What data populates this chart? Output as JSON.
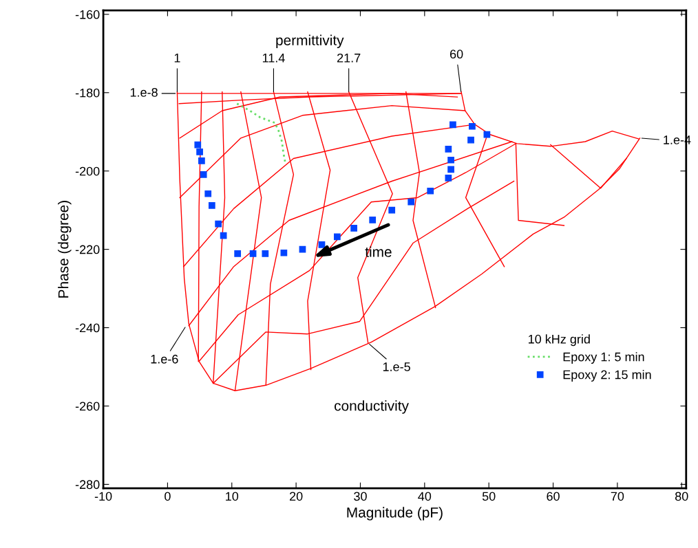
{
  "chart_data": {
    "type": "line",
    "xlabel": "Magnitude (pF)",
    "ylabel": "Phase (degree)",
    "legend_title": "10 kHz grid",
    "legend": "bottom right",
    "grid": false,
    "xlim": [
      -10,
      80.7
    ],
    "ylim": [
      -281,
      -159
    ],
    "xticks": [
      -10,
      0,
      10,
      20,
      30,
      40,
      50,
      60,
      70,
      80
    ],
    "yticks": [
      -280,
      -260,
      -240,
      -220,
      -200,
      -180,
      -160
    ],
    "series": [
      {
        "color": "#ff0000",
        "x": [
          1.5,
          45.7
        ],
        "values": [
          -180.2,
          -180.2
        ]
      },
      {
        "type": "line",
        "color": "#ff0000",
        "x": [
          1.5,
          1.9,
          2.6,
          3.3,
          4.9,
          7.1,
          10.5,
          15.3,
          22.3,
          31.7,
          41.6,
          48.9,
          56.9,
          61.7,
          67.1,
          70.3,
          73.5
        ],
        "values": [
          -179.8,
          -202.1,
          -227.5,
          -239.0,
          -248.6,
          -254.2,
          -256.1,
          -254.7,
          -250.4,
          -243.7,
          -234.6,
          -226.3,
          -216.1,
          -211.8,
          -204.7,
          -199.5,
          -191.6
        ]
      },
      {
        "type": "line",
        "color": "#ff0000",
        "x": [
          45.7,
          46.3,
          47.8,
          50.2,
          54.4,
          59.6,
          65.0,
          69.2,
          73.3
        ],
        "values": [
          -179.8,
          -184.6,
          -188.1,
          -190.7,
          -193.0,
          -193.7,
          -192.5,
          -189.8,
          -191.8
        ]
      },
      {
        "type": "line",
        "color": "#ff0000",
        "x": [
          5.3,
          4.9,
          4.8
        ],
        "values": [
          -179.8,
          -209.1,
          -248.6
        ]
      },
      {
        "type": "line",
        "color": "#ff0000",
        "x": [
          8.5,
          8.9,
          7.1
        ],
        "values": [
          -179.8,
          -206.8,
          -254.2
        ]
      },
      {
        "type": "line",
        "color": "#ff0000",
        "x": [
          11.4,
          14.6,
          10.5
        ],
        "values": [
          -179.8,
          -206.8,
          -256.1
        ]
      },
      {
        "type": "line",
        "color": "#ff0000",
        "x": [
          16.5,
          19.6,
          16.0,
          15.3
        ],
        "values": [
          -179.8,
          -200.9,
          -228.9,
          -254.7
        ]
      },
      {
        "type": "line",
        "color": "#ff0000",
        "x": [
          21.8,
          25.3,
          21.8,
          22.3
        ],
        "values": [
          -179.8,
          -199.8,
          -233.2,
          -250.7
        ]
      },
      {
        "type": "line",
        "color": "#ff0000",
        "x": [
          28.2,
          35.0,
          29.6,
          31.2
        ],
        "values": [
          -179.8,
          -205.8,
          -227.2,
          -243.9
        ]
      },
      {
        "type": "line",
        "color": "#ff0000",
        "x": [
          37.1,
          39.2,
          38.2,
          41.7
        ],
        "values": [
          -179.8,
          -200.4,
          -212.6,
          -234.9
        ]
      },
      {
        "type": "line",
        "color": "#ff0000",
        "x": [
          49.6,
          46.4,
          52.4
        ],
        "values": [
          -191.6,
          -206.8,
          -224.4
        ]
      },
      {
        "type": "line",
        "color": "#ff0000",
        "x": [
          54.2,
          54.6,
          61.7
        ],
        "values": [
          -193.0,
          -212.6,
          -213.9
        ]
      },
      {
        "type": "line",
        "color": "#ff0000",
        "x": [
          59.6,
          67.4,
          71.4
        ],
        "values": [
          -193.3,
          -204.4,
          -196.8
        ]
      },
      {
        "type": "line",
        "color": "#ff0000",
        "x": [
          1.8,
          11.4,
          22.1,
          38.2,
          45.7
        ],
        "values": [
          -182.8,
          -181.9,
          -181.1,
          -180.5,
          -180.2
        ]
      },
      {
        "type": "line",
        "color": "#ff0000",
        "x": [
          1.9,
          8.5,
          17.5,
          34.9,
          45.1
        ],
        "values": [
          -191.6,
          -184.6,
          -181.1,
          -180.2,
          -181.1
        ]
      },
      {
        "type": "line",
        "color": "#ff0000",
        "x": [
          1.9,
          11.4,
          21.0,
          34.9,
          46.3
        ],
        "values": [
          -206.8,
          -191.6,
          -185.8,
          -183.3,
          -184.6
        ]
      },
      {
        "type": "line",
        "color": "#ff0000",
        "x": [
          2.5,
          10.3,
          19.6,
          34.9,
          47.8
        ],
        "values": [
          -224.4,
          -209.6,
          -196.8,
          -191.1,
          -188.1
        ]
      },
      {
        "type": "line",
        "color": "#ff0000",
        "x": [
          3.3,
          10.3,
          18.9,
          34.9,
          53.6
        ],
        "values": [
          -239.5,
          -224.4,
          -212.6,
          -202.6,
          -192.5
        ]
      },
      {
        "type": "line",
        "color": "#ff0000",
        "x": [
          4.9,
          11.0,
          22.1,
          31.7,
          38.9,
          46.4,
          54.2
        ],
        "values": [
          -248.6,
          -236.7,
          -225.4,
          -207.9,
          -206.8,
          -200.4,
          -193.0
        ]
      },
      {
        "type": "line",
        "color": "#ff0000",
        "x": [
          7.1,
          15.3,
          21.8,
          29.9,
          38.2,
          46.7,
          53.9
        ],
        "values": [
          -254.2,
          -241.1,
          -241.6,
          -238.4,
          -218.4,
          -209.6,
          -202.6
        ]
      },
      {
        "type": "line",
        "name": "Epoxy 1: 5 min",
        "color": "#66dd66",
        "line_style": "dotted",
        "marker": "none",
        "x": [
          10.8,
          12.8,
          14.4,
          16.7,
          17.3,
          17.8,
          18.0,
          18.3
        ],
        "values": [
          -182.8,
          -184.6,
          -186.3,
          -187.7,
          -189.8,
          -192.5,
          -195.1,
          -197.7
        ]
      },
      {
        "type": "scatter",
        "name": "Epoxy 2: 15 min",
        "color": "#0044ff",
        "marker": "square",
        "x": [
          4.7,
          5.0,
          5.3,
          5.6,
          6.3,
          6.9,
          7.9,
          8.7,
          10.9,
          13.3,
          15.2,
          18.1,
          21.0,
          24.0,
          26.4,
          29.0,
          31.9,
          34.9,
          37.9,
          40.9,
          43.7,
          44.1,
          44.1,
          43.7,
          47.2,
          49.7,
          47.4,
          44.4
        ],
        "values": [
          -193.3,
          -195.1,
          -197.4,
          -200.9,
          -205.8,
          -208.8,
          -213.5,
          -216.5,
          -221.1,
          -221.1,
          -221.1,
          -220.9,
          -220.0,
          -218.8,
          -216.8,
          -214.6,
          -212.5,
          -210.0,
          -207.9,
          -205.1,
          -201.8,
          -199.6,
          -197.2,
          -194.4,
          -192.1,
          -190.7,
          -188.6,
          -188.2
        ]
      }
    ],
    "annotations": [
      "permittivity",
      "conductivity",
      {
        "text": "1",
        "x": 1.5,
        "y": -180.2
      },
      {
        "text": "11.4",
        "x": 16.5,
        "y": -180.2
      },
      {
        "text": "21.7",
        "x": 28.2,
        "y": -180.2
      },
      {
        "text": "60",
        "x": 45.7,
        "y": -180.2
      },
      {
        "text": "1.e-8",
        "x": 1.5,
        "y": -180.2
      },
      {
        "text": "1.e-6",
        "x": 2.9,
        "y": -239.5
      },
      {
        "text": "1.e-5",
        "x": 31.2,
        "y": -243.9
      },
      {
        "text": "1.e-4",
        "x": 73.5,
        "y": -191.6
      },
      "time"
    ]
  }
}
